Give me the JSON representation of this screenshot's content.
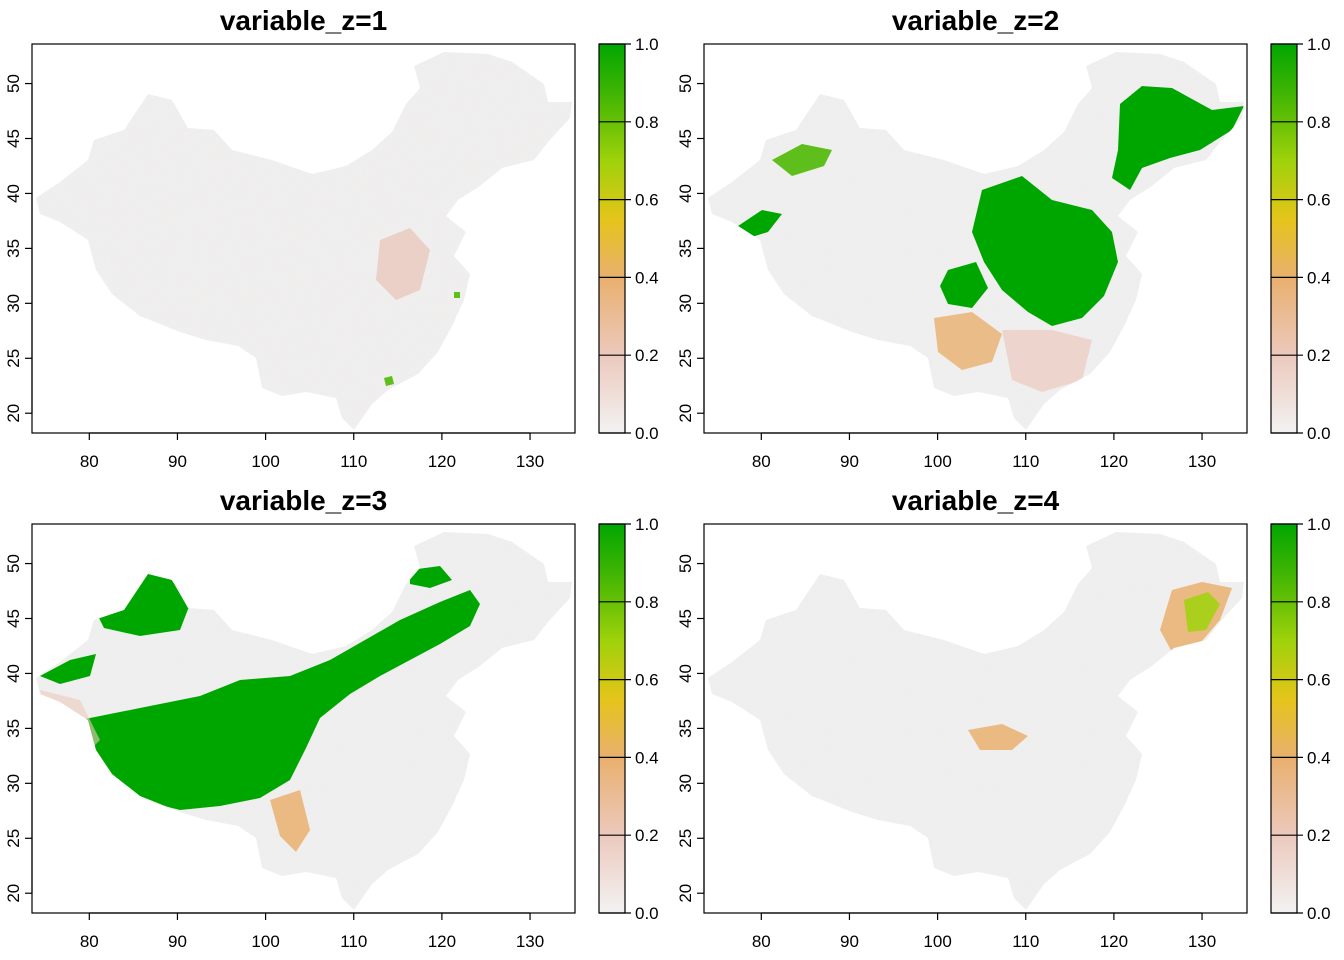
{
  "figure": {
    "panels": [
      {
        "title": "variable_z=1",
        "layer": 1
      },
      {
        "title": "variable_z=2",
        "layer": 2
      },
      {
        "title": "variable_z=3",
        "layer": 3
      },
      {
        "title": "variable_z=4",
        "layer": 4
      }
    ],
    "x_ticks": [
      "80",
      "90",
      "100",
      "110",
      "120",
      "130"
    ],
    "y_ticks": [
      "20",
      "25",
      "30",
      "35",
      "40",
      "45",
      "50"
    ],
    "legend_ticks": [
      "0.0",
      "0.2",
      "0.4",
      "0.6",
      "0.8",
      "1.0"
    ],
    "colors": {
      "background_land": "#efefef",
      "scale": [
        "#f2f2f2",
        "#ecc9bd",
        "#e9b06e",
        "#e5c41a",
        "#9fd20a",
        "#4cb804",
        "#00a600"
      ]
    }
  },
  "chart_data": [
    {
      "type": "heatmap",
      "title": "variable_z=1",
      "x_ticks": [
        80,
        90,
        100,
        110,
        120,
        130
      ],
      "y_ticks": [
        20,
        25,
        30,
        35,
        40,
        45,
        50
      ],
      "xlim": [
        73.5,
        135.1
      ],
      "ylim": [
        18.2,
        53.6
      ],
      "value_range": [
        0,
        1
      ],
      "legend_ticks": [
        0.0,
        0.2,
        0.4,
        0.6,
        0.8,
        1.0
      ],
      "legend": "right",
      "grid": false
    },
    {
      "type": "heatmap",
      "title": "variable_z=2",
      "x_ticks": [
        80,
        90,
        100,
        110,
        120,
        130
      ],
      "y_ticks": [
        20,
        25,
        30,
        35,
        40,
        45,
        50
      ],
      "xlim": [
        73.5,
        135.1
      ],
      "ylim": [
        18.2,
        53.6
      ],
      "value_range": [
        0,
        1
      ],
      "legend_ticks": [
        0.0,
        0.2,
        0.4,
        0.6,
        0.8,
        1.0
      ],
      "legend": "right",
      "grid": false
    },
    {
      "type": "heatmap",
      "title": "variable_z=3",
      "x_ticks": [
        80,
        90,
        100,
        110,
        120,
        130
      ],
      "y_ticks": [
        20,
        25,
        30,
        35,
        40,
        45,
        50
      ],
      "xlim": [
        73.5,
        135.1
      ],
      "ylim": [
        18.2,
        53.6
      ],
      "value_range": [
        0,
        1
      ],
      "legend_ticks": [
        0.0,
        0.2,
        0.4,
        0.6,
        0.8,
        1.0
      ],
      "legend": "right",
      "grid": false
    },
    {
      "type": "heatmap",
      "title": "variable_z=4",
      "x_ticks": [
        80,
        90,
        100,
        110,
        120,
        130
      ],
      "y_ticks": [
        20,
        25,
        30,
        35,
        40,
        45,
        50
      ],
      "xlim": [
        73.5,
        135.1
      ],
      "ylim": [
        18.2,
        53.6
      ],
      "value_range": [
        0,
        1
      ],
      "legend_ticks": [
        0.0,
        0.2,
        0.4,
        0.6,
        0.8,
        1.0
      ],
      "legend": "right",
      "grid": false
    }
  ]
}
